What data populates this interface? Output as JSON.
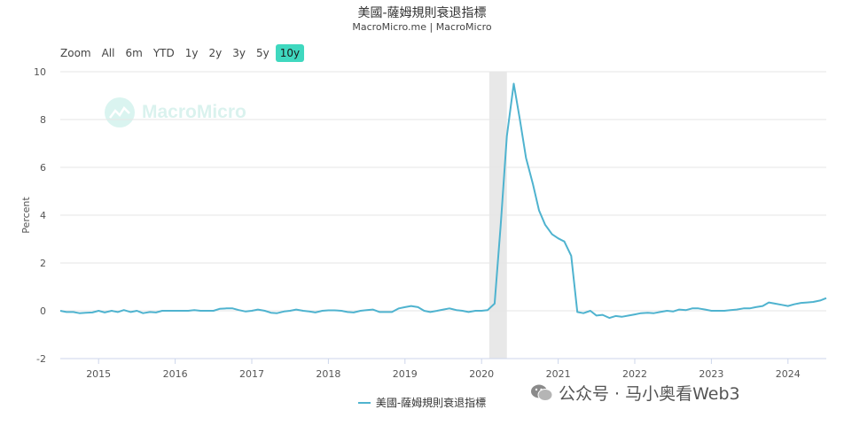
{
  "title": "美國-薩姆規則衰退指標",
  "subtitle": "MacroMicro.me | MacroMicro",
  "range_buttons": [
    {
      "label": "Zoom",
      "active": false
    },
    {
      "label": "All",
      "active": false
    },
    {
      "label": "6m",
      "active": false
    },
    {
      "label": "YTD",
      "active": false
    },
    {
      "label": "1y",
      "active": false
    },
    {
      "label": "2y",
      "active": false
    },
    {
      "label": "3y",
      "active": false
    },
    {
      "label": "5y",
      "active": false
    },
    {
      "label": "10y",
      "active": true
    }
  ],
  "watermark_text": "MacroMicro",
  "wechat_text": "公众号 · 马小奥看Web3",
  "legend_label": "美國-薩姆規則衰退指標",
  "colors": {
    "series": "#4fb3cf",
    "active_button": "#3fd8bf",
    "recession_band": "#e8e8e8"
  },
  "chart_data": {
    "type": "line",
    "title": "美國-薩姆規則衰退指標",
    "subtitle": "MacroMicro.me | MacroMicro",
    "ylabel": "Percent",
    "xlabel": "",
    "ylim": [
      -2,
      10
    ],
    "yticks": [
      -2,
      0,
      2,
      4,
      6,
      8,
      10
    ],
    "xlim": [
      2014.5,
      2024.5
    ],
    "xticks": [
      2015,
      2016,
      2017,
      2018,
      2019,
      2020,
      2021,
      2022,
      2023,
      2024
    ],
    "grid": true,
    "legend_position": "bottom-center",
    "shaded_regions": [
      {
        "label": "recession",
        "start": 2020.1,
        "end": 2020.33
      }
    ],
    "series": [
      {
        "name": "美國-薩姆規則衰退指標",
        "x": [
          2014.5,
          2014.58,
          2014.67,
          2014.75,
          2014.83,
          2014.92,
          2015.0,
          2015.08,
          2015.17,
          2015.25,
          2015.33,
          2015.42,
          2015.5,
          2015.58,
          2015.67,
          2015.75,
          2015.83,
          2015.92,
          2016.0,
          2016.08,
          2016.17,
          2016.25,
          2016.33,
          2016.42,
          2016.5,
          2016.58,
          2016.67,
          2016.75,
          2016.83,
          2016.92,
          2017.0,
          2017.08,
          2017.17,
          2017.25,
          2017.33,
          2017.42,
          2017.5,
          2017.58,
          2017.67,
          2017.75,
          2017.83,
          2017.92,
          2018.0,
          2018.08,
          2018.17,
          2018.25,
          2018.33,
          2018.42,
          2018.5,
          2018.58,
          2018.67,
          2018.75,
          2018.83,
          2018.92,
          2019.0,
          2019.08,
          2019.17,
          2019.25,
          2019.33,
          2019.42,
          2019.5,
          2019.58,
          2019.67,
          2019.75,
          2019.83,
          2019.92,
          2020.0,
          2020.08,
          2020.17,
          2020.25,
          2020.33,
          2020.42,
          2020.5,
          2020.58,
          2020.67,
          2020.75,
          2020.83,
          2020.92,
          2021.0,
          2021.08,
          2021.17,
          2021.25,
          2021.33,
          2021.42,
          2021.5,
          2021.58,
          2021.67,
          2021.75,
          2021.83,
          2021.92,
          2022.0,
          2022.08,
          2022.17,
          2022.25,
          2022.33,
          2022.42,
          2022.5,
          2022.58,
          2022.67,
          2022.75,
          2022.83,
          2022.92,
          2023.0,
          2023.08,
          2023.17,
          2023.25,
          2023.33,
          2023.42,
          2023.5,
          2023.58,
          2023.67,
          2023.75,
          2023.83,
          2023.92,
          2024.0,
          2024.08,
          2024.17,
          2024.25,
          2024.33,
          2024.42,
          2024.5
        ],
        "y": [
          0.0,
          -0.05,
          -0.05,
          -0.1,
          -0.08,
          -0.07,
          0.0,
          -0.07,
          0.0,
          -0.05,
          0.03,
          -0.05,
          0.0,
          -0.1,
          -0.05,
          -0.07,
          0.0,
          0.0,
          0.0,
          0.0,
          0.0,
          0.03,
          0.0,
          0.0,
          0.0,
          0.08,
          0.1,
          0.1,
          0.03,
          -0.03,
          0.0,
          0.05,
          0.0,
          -0.08,
          -0.1,
          -0.03,
          0.0,
          0.05,
          0.0,
          -0.03,
          -0.07,
          0.0,
          0.02,
          0.02,
          0.0,
          -0.05,
          -0.07,
          0.0,
          0.03,
          0.05,
          -0.05,
          -0.05,
          -0.05,
          0.1,
          0.15,
          0.2,
          0.15,
          0.0,
          -0.05,
          0.0,
          0.05,
          0.1,
          0.03,
          0.0,
          -0.05,
          0.0,
          0.0,
          0.03,
          0.3,
          3.6,
          7.3,
          9.5,
          8.0,
          6.4,
          5.3,
          4.2,
          3.6,
          3.2,
          3.03,
          2.9,
          2.3,
          -0.05,
          -0.1,
          0.0,
          -0.2,
          -0.17,
          -0.3,
          -0.22,
          -0.25,
          -0.2,
          -0.15,
          -0.1,
          -0.08,
          -0.1,
          -0.05,
          0.0,
          -0.03,
          0.05,
          0.03,
          0.1,
          0.1,
          0.05,
          0.0,
          0.0,
          0.0,
          0.03,
          0.05,
          0.1,
          0.1,
          0.15,
          0.2,
          0.35,
          0.3,
          0.25,
          0.2,
          0.27,
          0.33,
          0.35,
          0.37,
          0.43,
          0.53
        ]
      }
    ]
  }
}
